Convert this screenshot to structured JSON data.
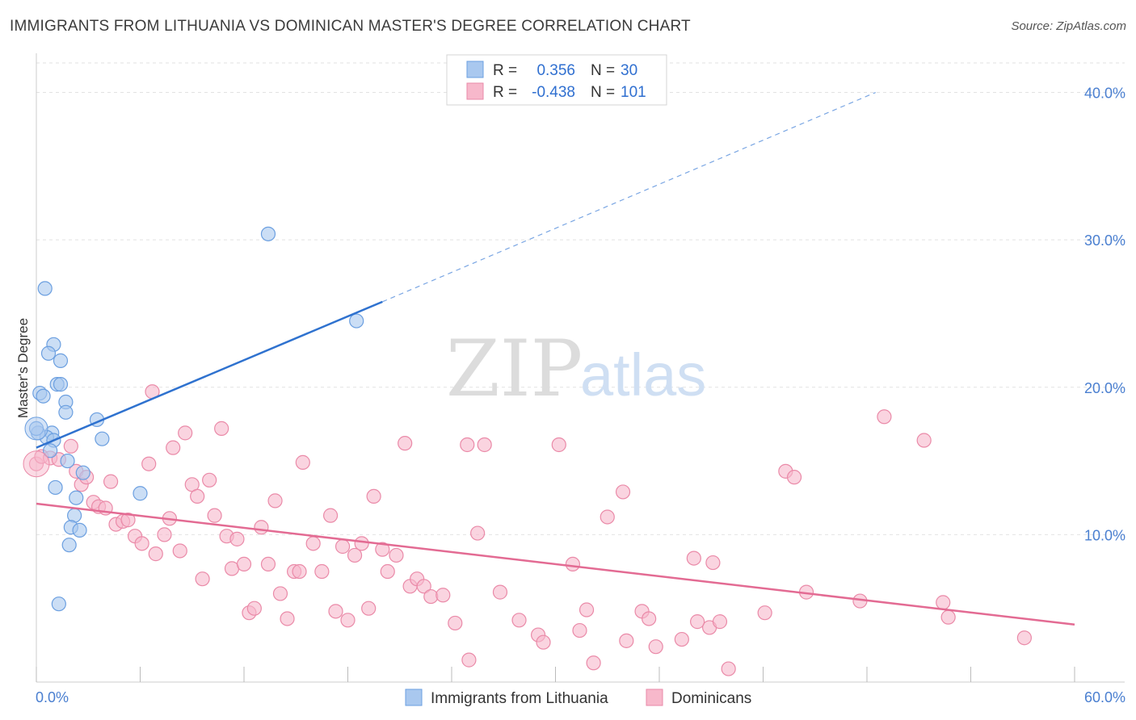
{
  "title": "IMMIGRANTS FROM LITHUANIA VS DOMINICAN MASTER'S DEGREE CORRELATION CHART",
  "source": "Source: ZipAtlas.com",
  "watermark": {
    "zip": "ZIP",
    "atlas": "atlas"
  },
  "legend": {
    "r_label": "R =",
    "n_label": "N =",
    "rows": [
      {
        "r": "0.356",
        "n": "30",
        "color": "#a9c8ef",
        "stroke": "#6b9fe0"
      },
      {
        "r": "-0.438",
        "n": "101",
        "color": "#f7b8cb",
        "stroke": "#ea8aa8"
      }
    ]
  },
  "bottom_legend": [
    {
      "label": "Immigrants from Lithuania",
      "color": "#a9c8ef",
      "stroke": "#6b9fe0"
    },
    {
      "label": "Dominicans",
      "color": "#f7b8cb",
      "stroke": "#ea8aa8"
    }
  ],
  "chart_data": {
    "type": "scatter",
    "title": "IMMIGRANTS FROM LITHUANIA VS DOMINICAN MASTER'S DEGREE CORRELATION CHART",
    "xlabel": "",
    "ylabel": "Master's Degree",
    "xlim": [
      0,
      60
    ],
    "ylim": [
      0,
      42
    ],
    "x_tick_labels": [
      {
        "value": 0,
        "label": "0.0%"
      },
      {
        "value": 60,
        "label": "60.0%"
      }
    ],
    "y_tick_labels": [
      {
        "value": 10,
        "label": "10.0%"
      },
      {
        "value": 20,
        "label": "20.0%"
      },
      {
        "value": 30,
        "label": "30.0%"
      },
      {
        "value": 40,
        "label": "40.0%"
      }
    ],
    "grid": true,
    "legend_position": "top-center",
    "series": [
      {
        "name": "Immigrants from Lithuania",
        "color": "#6b9fe0",
        "fill": "#a9c8ef",
        "trend": {
          "x": [
            0,
            20
          ],
          "y": [
            15.9,
            25.8
          ],
          "dashed_to": {
            "x": 48.5,
            "y": 40
          }
        },
        "points": [
          [
            0.5,
            26.7
          ],
          [
            1.0,
            22.9
          ],
          [
            0.7,
            22.3
          ],
          [
            1.4,
            21.8
          ],
          [
            1.2,
            20.2
          ],
          [
            1.4,
            20.2
          ],
          [
            0.2,
            19.6
          ],
          [
            0.4,
            19.4
          ],
          [
            1.7,
            19.0
          ],
          [
            1.7,
            18.3
          ],
          [
            3.5,
            17.8
          ],
          [
            0.9,
            16.9
          ],
          [
            0.6,
            16.6
          ],
          [
            1.0,
            16.4
          ],
          [
            3.8,
            16.5
          ],
          [
            0.1,
            16.9
          ],
          [
            0.8,
            15.7
          ],
          [
            1.8,
            15.0
          ],
          [
            2.7,
            14.2
          ],
          [
            1.1,
            13.2
          ],
          [
            2.3,
            12.5
          ],
          [
            2.2,
            11.3
          ],
          [
            6.0,
            12.8
          ],
          [
            2.0,
            10.5
          ],
          [
            2.5,
            10.3
          ],
          [
            1.9,
            9.3
          ],
          [
            13.4,
            30.4
          ],
          [
            18.5,
            24.5
          ],
          [
            1.3,
            5.3
          ],
          [
            0.0,
            17.2
          ]
        ]
      },
      {
        "name": "Dominicans",
        "color": "#ea8aa8",
        "fill": "#f7b8cb",
        "trend": {
          "x": [
            0,
            60
          ],
          "y": [
            12.1,
            3.9
          ]
        },
        "points": [
          [
            0.0,
            14.8
          ],
          [
            0.3,
            15.3
          ],
          [
            0.8,
            15.2
          ],
          [
            1.3,
            15.1
          ],
          [
            2.0,
            16.0
          ],
          [
            2.3,
            14.3
          ],
          [
            2.6,
            13.4
          ],
          [
            2.9,
            13.9
          ],
          [
            3.3,
            12.2
          ],
          [
            3.6,
            11.9
          ],
          [
            4.0,
            11.8
          ],
          [
            4.3,
            13.6
          ],
          [
            4.6,
            10.7
          ],
          [
            5.0,
            10.9
          ],
          [
            5.3,
            11.0
          ],
          [
            5.7,
            9.9
          ],
          [
            6.1,
            9.4
          ],
          [
            6.7,
            19.7
          ],
          [
            6.5,
            14.8
          ],
          [
            6.9,
            8.7
          ],
          [
            7.4,
            10.0
          ],
          [
            7.7,
            11.1
          ],
          [
            7.9,
            15.9
          ],
          [
            8.3,
            8.9
          ],
          [
            8.6,
            16.9
          ],
          [
            9.0,
            13.4
          ],
          [
            9.3,
            12.6
          ],
          [
            9.6,
            7.0
          ],
          [
            10.0,
            13.7
          ],
          [
            10.3,
            11.3
          ],
          [
            10.7,
            17.2
          ],
          [
            11.0,
            9.9
          ],
          [
            11.3,
            7.7
          ],
          [
            11.6,
            9.7
          ],
          [
            12.0,
            8.0
          ],
          [
            12.3,
            4.7
          ],
          [
            12.6,
            5.0
          ],
          [
            13.0,
            10.5
          ],
          [
            13.4,
            8.0
          ],
          [
            13.8,
            12.3
          ],
          [
            14.1,
            6.0
          ],
          [
            14.5,
            4.3
          ],
          [
            14.9,
            7.5
          ],
          [
            15.2,
            7.5
          ],
          [
            15.4,
            14.9
          ],
          [
            16.0,
            9.4
          ],
          [
            16.5,
            7.5
          ],
          [
            17.0,
            11.3
          ],
          [
            17.3,
            4.8
          ],
          [
            17.7,
            9.2
          ],
          [
            18.0,
            4.2
          ],
          [
            18.4,
            8.6
          ],
          [
            18.8,
            9.4
          ],
          [
            19.2,
            5.0
          ],
          [
            19.5,
            12.6
          ],
          [
            20.0,
            9.0
          ],
          [
            20.3,
            7.5
          ],
          [
            20.8,
            8.6
          ],
          [
            21.3,
            16.2
          ],
          [
            21.6,
            6.5
          ],
          [
            22.0,
            7.0
          ],
          [
            22.4,
            6.5
          ],
          [
            22.8,
            5.8
          ],
          [
            23.5,
            5.9
          ],
          [
            24.2,
            4.0
          ],
          [
            24.9,
            16.1
          ],
          [
            25.5,
            10.1
          ],
          [
            25.9,
            16.1
          ],
          [
            26.8,
            6.1
          ],
          [
            27.9,
            4.2
          ],
          [
            29.0,
            3.2
          ],
          [
            29.3,
            2.7
          ],
          [
            30.2,
            16.1
          ],
          [
            31.0,
            8.0
          ],
          [
            31.4,
            3.5
          ],
          [
            31.8,
            4.9
          ],
          [
            32.2,
            1.3
          ],
          [
            33.0,
            11.2
          ],
          [
            33.9,
            12.9
          ],
          [
            34.1,
            2.8
          ],
          [
            35.0,
            4.8
          ],
          [
            35.4,
            4.3
          ],
          [
            35.8,
            2.4
          ],
          [
            37.3,
            2.9
          ],
          [
            38.0,
            8.4
          ],
          [
            38.9,
            3.7
          ],
          [
            39.1,
            8.1
          ],
          [
            39.5,
            4.1
          ],
          [
            40.0,
            0.9
          ],
          [
            42.1,
            4.7
          ],
          [
            43.3,
            14.3
          ],
          [
            43.8,
            13.9
          ],
          [
            44.5,
            6.1
          ],
          [
            47.6,
            5.5
          ],
          [
            49.0,
            18.0
          ],
          [
            51.3,
            16.4
          ],
          [
            52.4,
            5.4
          ],
          [
            52.7,
            4.4
          ],
          [
            57.1,
            3.0
          ],
          [
            38.2,
            4.1
          ],
          [
            25.0,
            1.5
          ]
        ]
      }
    ]
  }
}
